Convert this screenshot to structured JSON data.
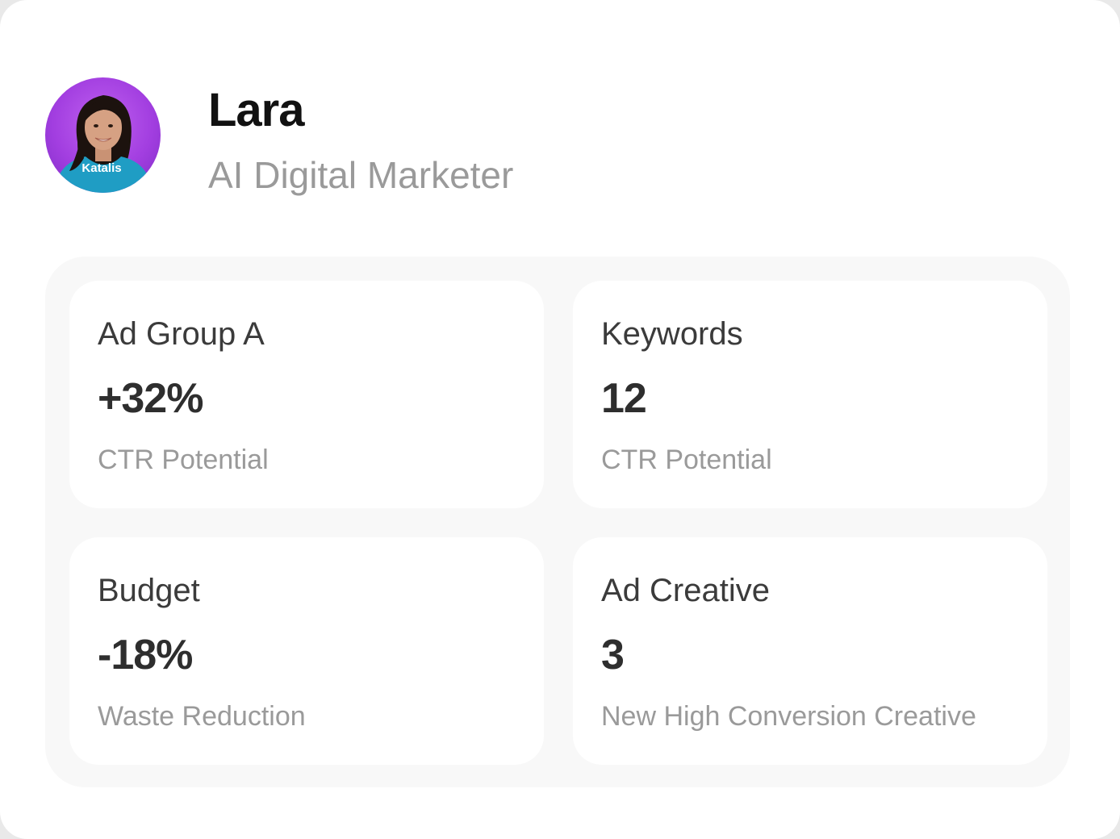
{
  "profile": {
    "name": "Lara",
    "role": "AI Digital Marketer",
    "avatar_shirt_text": "Katalis",
    "avatar_bg": "#a23ee0",
    "shirt_color": "#1f9dc4"
  },
  "stats": [
    {
      "label": "Ad Group A",
      "value": "+32%",
      "caption": "CTR Potential"
    },
    {
      "label": "Keywords",
      "value": "12",
      "caption": "CTR Potential"
    },
    {
      "label": "Budget",
      "value": "-18%",
      "caption": "Waste Reduction"
    },
    {
      "label": "Ad Creative",
      "value": "3",
      "caption": "New High Conversion Creative"
    }
  ]
}
